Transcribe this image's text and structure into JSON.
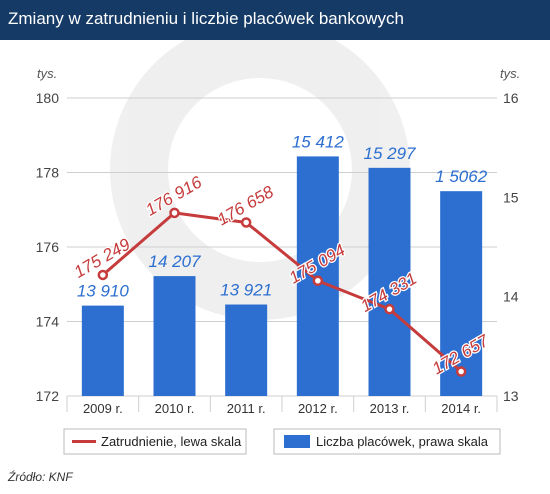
{
  "header": {
    "title": "Zmiany w zatrudnieniu i liczbie placówek bankowych"
  },
  "source": "Źródło: KNF",
  "chart_data": {
    "type": "bar",
    "title": "Zmiany w zatrudnieniu i liczbie placówek bankowych",
    "categories": [
      "2009 r.",
      "2010 r.",
      "2011 r.",
      "2012 r.",
      "2013 r.",
      "2014 r."
    ],
    "left_axis": {
      "unit": "tys.",
      "range": [
        172,
        180
      ],
      "ticks": [
        172,
        174,
        176,
        178,
        180
      ]
    },
    "right_axis": {
      "unit": "tys.",
      "range": [
        13,
        16
      ],
      "ticks": [
        13,
        14,
        15,
        16
      ]
    },
    "series": [
      {
        "name": "Zatrudnienie, lewa skala",
        "type": "line",
        "axis": "left",
        "color": "#c63b3b",
        "values": [
          175.249,
          176.916,
          176.658,
          175.094,
          174.331,
          172.657
        ],
        "labels": [
          "175 249",
          "176 916",
          "176 658",
          "175 094",
          "174 331",
          "172 657"
        ]
      },
      {
        "name": "Liczba placówek, prawa skala",
        "type": "bar",
        "axis": "right",
        "color": "#2c6fd1",
        "values": [
          13.91,
          14.207,
          13.921,
          15.412,
          15.297,
          15.062
        ],
        "labels": [
          "13 910",
          "14 207",
          "13 921",
          "15 412",
          "15 297",
          "1 5062"
        ]
      }
    ],
    "grid": true,
    "legend": "bottom"
  }
}
